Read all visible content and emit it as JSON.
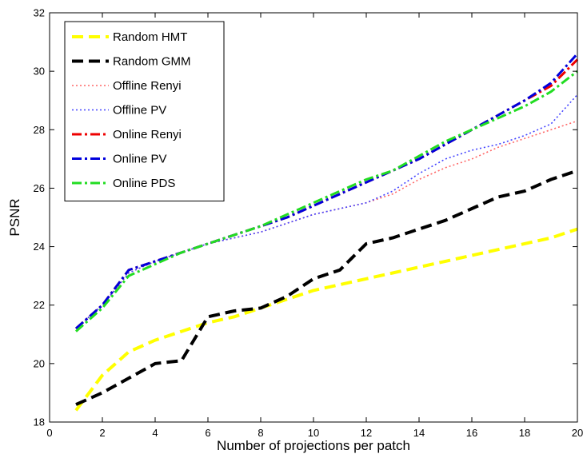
{
  "chart_data": {
    "type": "line",
    "title": "",
    "xlabel": "Number of projections per patch",
    "ylabel": "PSNR",
    "xlim": [
      0,
      20
    ],
    "ylim": [
      18,
      32
    ],
    "xticks": [
      0,
      2,
      4,
      6,
      8,
      10,
      12,
      14,
      16,
      18,
      20
    ],
    "yticks": [
      18,
      20,
      22,
      24,
      26,
      28,
      30,
      32
    ],
    "grid": false,
    "legend_position": "top-left",
    "x": [
      1,
      2,
      3,
      4,
      5,
      6,
      7,
      8,
      9,
      10,
      11,
      12,
      13,
      14,
      15,
      16,
      17,
      18,
      19,
      20
    ],
    "series": [
      {
        "name": "Random HMT",
        "color": "#ffff00",
        "dash": "dashed",
        "values": [
          18.4,
          19.6,
          20.4,
          20.8,
          21.1,
          21.4,
          21.6,
          21.9,
          22.2,
          22.5,
          22.7,
          22.9,
          23.1,
          23.3,
          23.5,
          23.7,
          23.9,
          24.1,
          24.3,
          24.6
        ]
      },
      {
        "name": "Random GMM",
        "color": "#000000",
        "dash": "dashed",
        "values": [
          18.6,
          19.0,
          19.5,
          20.0,
          20.1,
          21.6,
          21.8,
          21.9,
          22.3,
          22.9,
          23.2,
          24.1,
          24.3,
          24.6,
          24.9,
          25.3,
          25.7,
          25.9,
          26.3,
          26.6
        ]
      },
      {
        "name": "Offline Renyi",
        "color": "#ff6666",
        "dash": "dotted",
        "values": [
          21.2,
          22.0,
          23.1,
          23.5,
          23.8,
          24.1,
          24.3,
          24.5,
          24.8,
          25.1,
          25.3,
          25.5,
          25.8,
          26.3,
          26.7,
          27.0,
          27.4,
          27.7,
          28.0,
          28.3
        ]
      },
      {
        "name": "Offline PV",
        "color": "#4444ff",
        "dash": "dotted",
        "values": [
          21.2,
          22.0,
          23.1,
          23.5,
          23.8,
          24.1,
          24.3,
          24.5,
          24.8,
          25.1,
          25.3,
          25.5,
          25.9,
          26.5,
          27.0,
          27.3,
          27.5,
          27.8,
          28.2,
          29.2
        ]
      },
      {
        "name": "Online Renyi",
        "color": "#ee0000",
        "dash": "dashdot",
        "values": [
          21.2,
          22.0,
          23.2,
          23.5,
          23.8,
          24.1,
          24.4,
          24.7,
          25.0,
          25.4,
          25.8,
          26.2,
          26.6,
          27.0,
          27.5,
          28.0,
          28.5,
          29.0,
          29.5,
          30.4
        ]
      },
      {
        "name": "Online PV",
        "color": "#0000dd",
        "dash": "dashdot",
        "values": [
          21.2,
          22.0,
          23.2,
          23.5,
          23.8,
          24.1,
          24.4,
          24.7,
          25.0,
          25.4,
          25.8,
          26.2,
          26.6,
          27.0,
          27.5,
          28.0,
          28.5,
          29.0,
          29.6,
          30.6
        ]
      },
      {
        "name": "Online PDS",
        "color": "#22dd22",
        "dash": "dashdot",
        "values": [
          21.1,
          21.9,
          23.0,
          23.4,
          23.8,
          24.1,
          24.4,
          24.7,
          25.1,
          25.5,
          25.9,
          26.3,
          26.6,
          27.1,
          27.6,
          28.0,
          28.4,
          28.8,
          29.3,
          30.0
        ]
      }
    ]
  }
}
